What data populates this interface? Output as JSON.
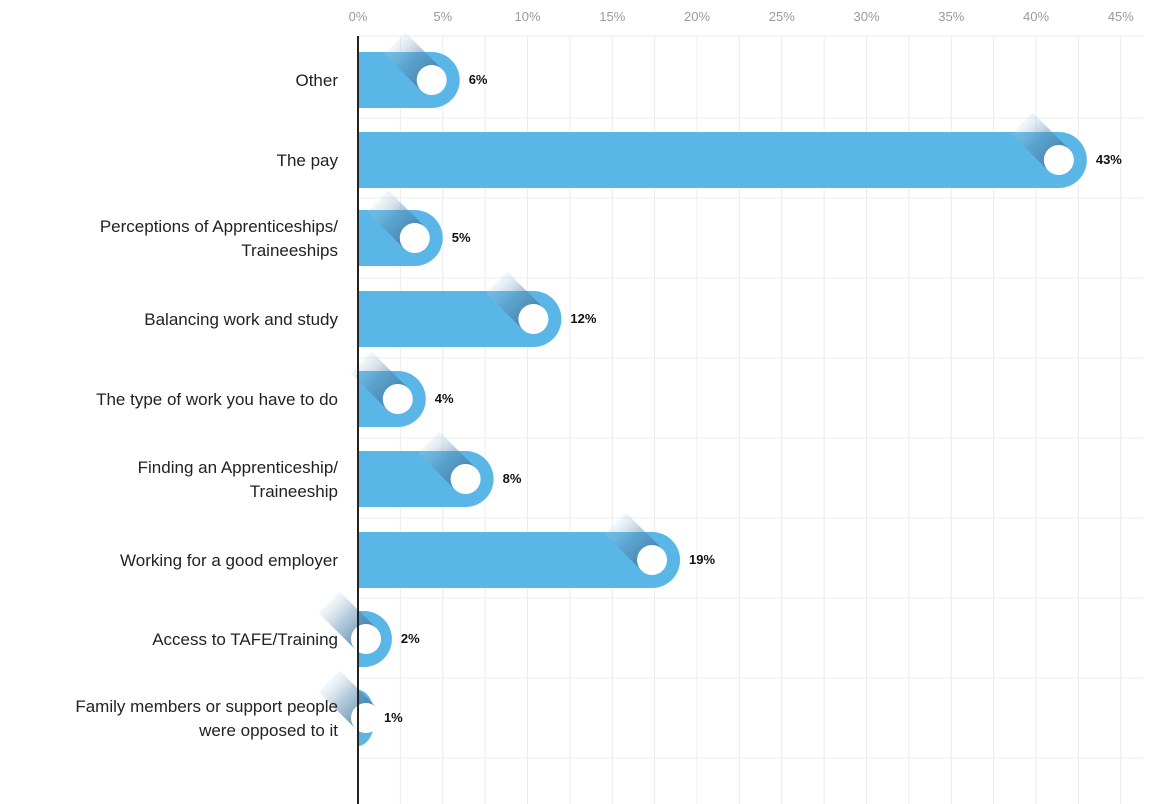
{
  "chart_data": {
    "type": "bar",
    "orientation": "horizontal",
    "categories": [
      [
        "Other"
      ],
      [
        "The pay"
      ],
      [
        "Perceptions of Apprenticeships/",
        "Traineeships"
      ],
      [
        "Balancing work and study"
      ],
      [
        "The type of work you have to do"
      ],
      [
        "Finding an Apprenticeship/",
        "Traineeship"
      ],
      [
        "Working for a good employer"
      ],
      [
        "Access to TAFE/Training"
      ],
      [
        "Family members or support people",
        "were opposed to it"
      ]
    ],
    "values": [
      6,
      43,
      5,
      12,
      4,
      8,
      19,
      2,
      1
    ],
    "value_labels": [
      "6%",
      "43%",
      "5%",
      "12%",
      "4%",
      "8%",
      "19%",
      "2%",
      "1%"
    ],
    "x_ticks": [
      0,
      5,
      10,
      15,
      20,
      25,
      30,
      35,
      40,
      45
    ],
    "x_tick_labels": [
      "0%",
      "5%",
      "10%",
      "15%",
      "20%",
      "25%",
      "30%",
      "35%",
      "40%",
      "45%"
    ],
    "xlim": [
      0,
      45
    ],
    "axis_position": "top",
    "grid": true,
    "colors": {
      "bar": "#5ab6e6",
      "knob": "#ffffff",
      "shadow": "#2c5f86",
      "grid": "#ececec",
      "axis": "#222222"
    }
  }
}
